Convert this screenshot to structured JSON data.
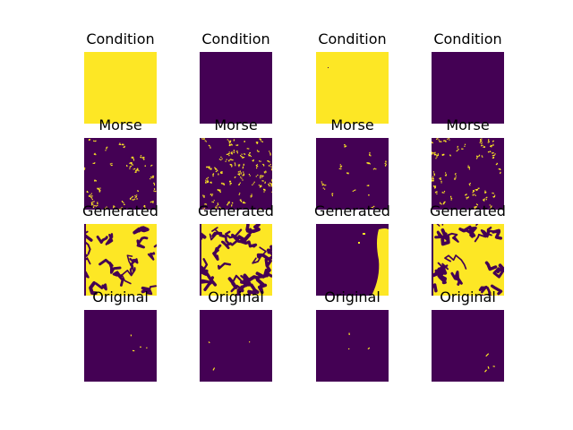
{
  "figure": {
    "colors": {
      "low": "#440154",
      "high": "#fde725",
      "background": "#ffffff"
    },
    "rows": [
      {
        "title": "Condition",
        "panels": [
          {
            "index": 0,
            "fill": "high"
          },
          {
            "index": 1,
            "fill": "low"
          },
          {
            "index": 2,
            "fill": "high",
            "spot": "low"
          },
          {
            "index": 3,
            "fill": "low"
          }
        ]
      },
      {
        "title": "Morse",
        "panels": [
          {
            "index": 0,
            "fill": "low",
            "pattern": "sparse-edges",
            "density": 0.35
          },
          {
            "index": 1,
            "fill": "low",
            "pattern": "sparse-edges",
            "density": 0.7
          },
          {
            "index": 2,
            "fill": "low",
            "pattern": "sparse-edges",
            "density": 0.12
          },
          {
            "index": 3,
            "fill": "low",
            "pattern": "sparse-edges",
            "density": 0.45
          }
        ]
      },
      {
        "title": "Generated",
        "panels": [
          {
            "index": 0,
            "fill": "high",
            "pattern": "blobs",
            "density": 0.35
          },
          {
            "index": 1,
            "fill": "high",
            "pattern": "blobs",
            "density": 0.55
          },
          {
            "index": 2,
            "fill": "low",
            "pattern": "right-band",
            "density": 0.2
          },
          {
            "index": 3,
            "fill": "high",
            "pattern": "blobs",
            "density": 0.45
          }
        ]
      },
      {
        "title": "Original",
        "panels": [
          {
            "index": 0,
            "fill": "low",
            "pattern": "few-strokes",
            "density": 0.05
          },
          {
            "index": 1,
            "fill": "low",
            "pattern": "few-strokes",
            "density": 0.04
          },
          {
            "index": 2,
            "fill": "low",
            "pattern": "few-strokes",
            "density": 0.04
          },
          {
            "index": 3,
            "fill": "low",
            "pattern": "few-strokes",
            "density": 0.07
          }
        ]
      }
    ]
  }
}
